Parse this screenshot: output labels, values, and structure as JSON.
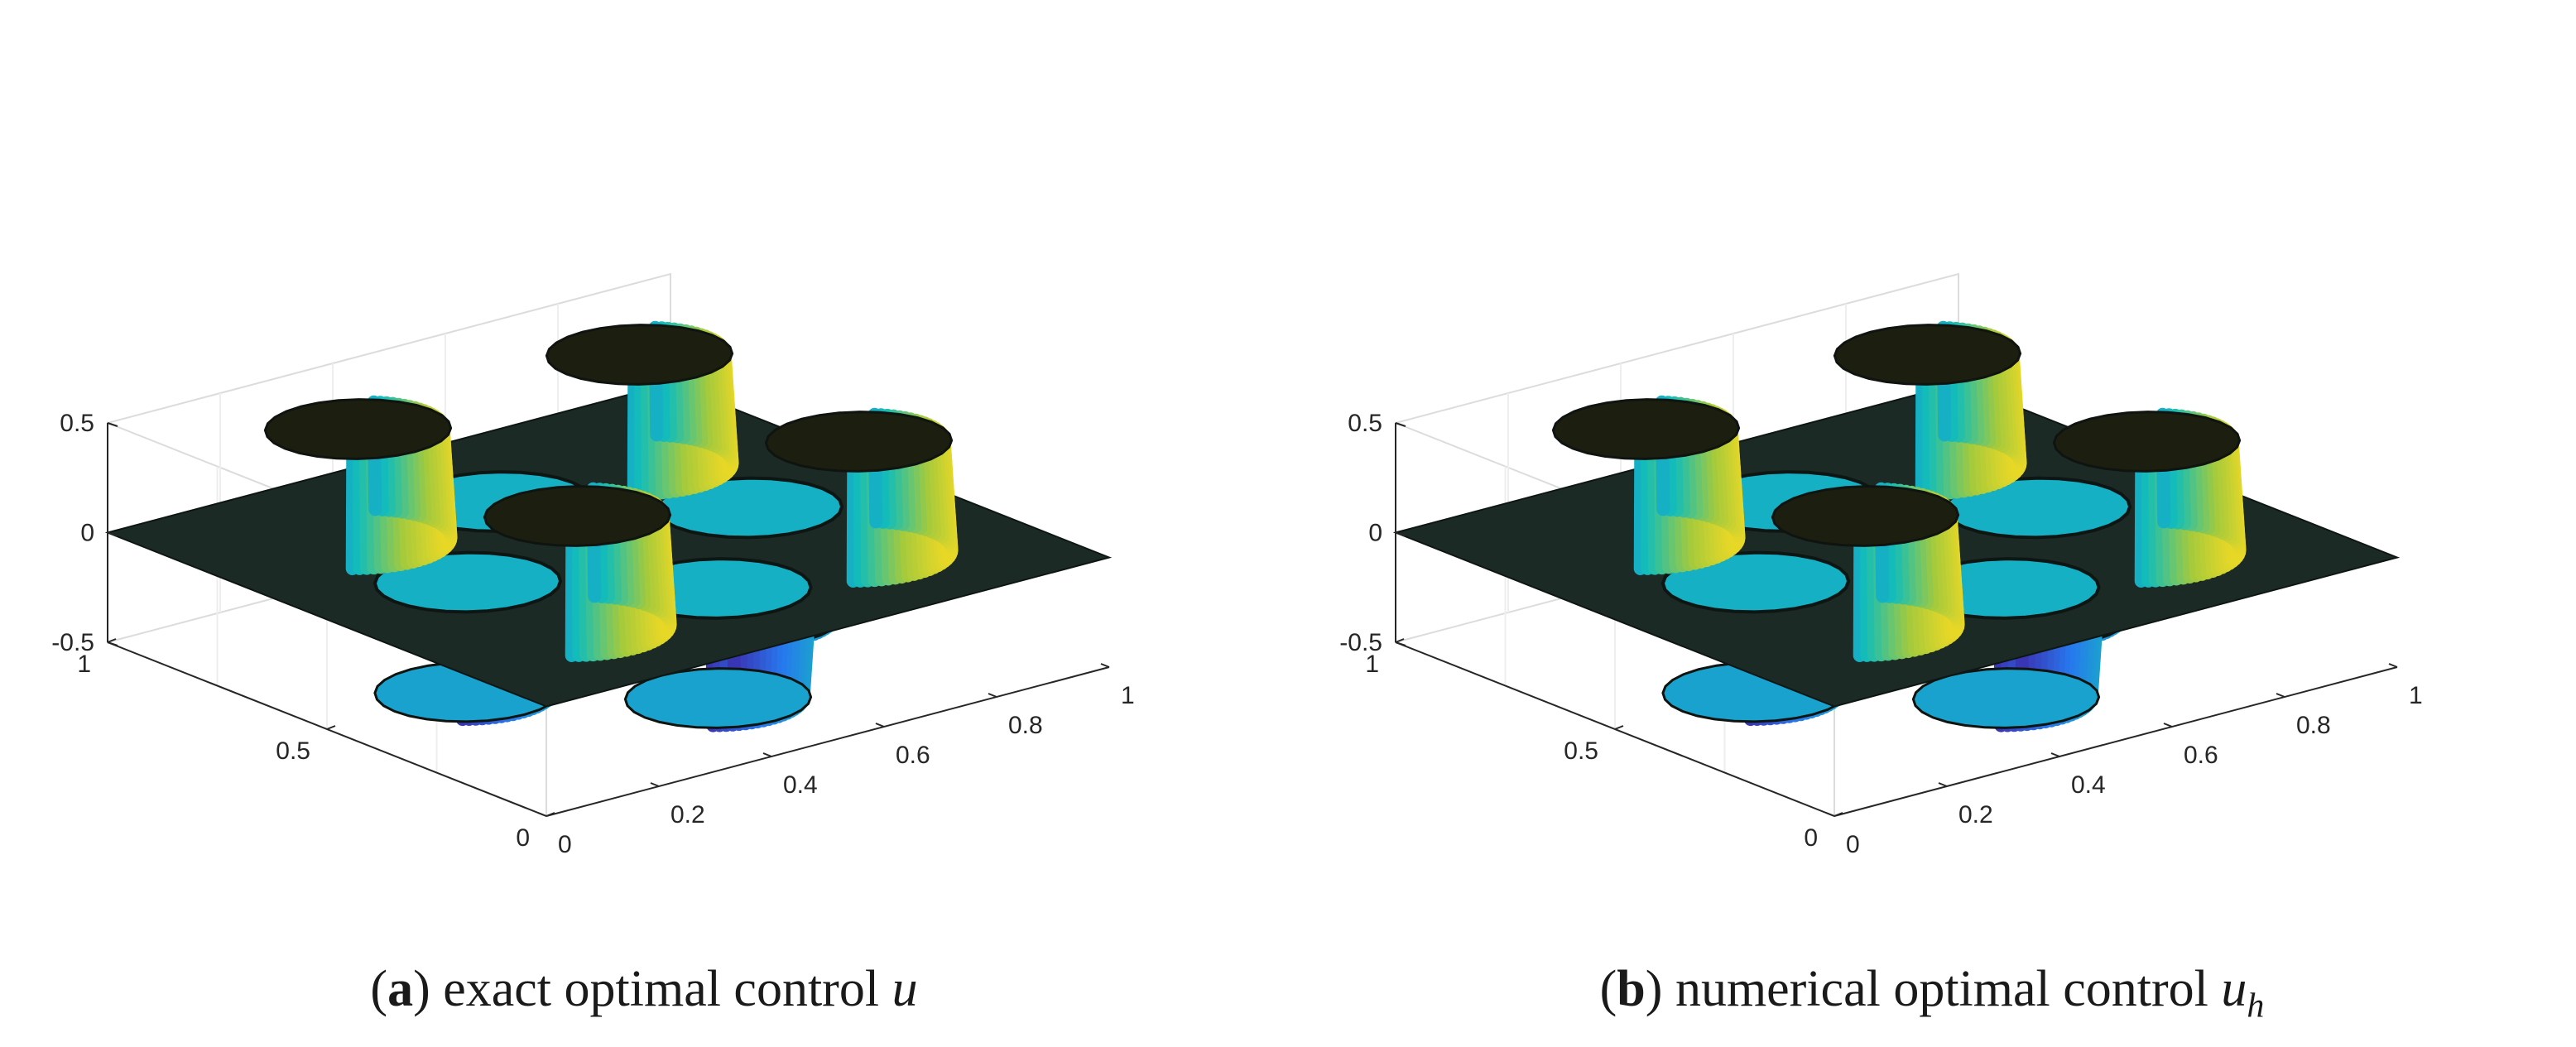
{
  "chart_data": [
    {
      "type": "surface",
      "panel_label": "a",
      "caption": "exact optimal control",
      "caption_var": "u",
      "caption_sub": "",
      "zlim": [
        -0.5,
        0.5
      ],
      "xlim": [
        0,
        1
      ],
      "ylim": [
        0,
        1
      ],
      "z_ticks": [
        "-0.5",
        "0",
        "0.5"
      ],
      "x_ticks": [
        "0",
        "0.2",
        "0.4",
        "0.6",
        "0.8",
        "1"
      ],
      "y_ticks": [
        "0",
        "0.5",
        "1"
      ],
      "grid": true,
      "colormap": "parula",
      "bumps": [
        {
          "x": 0.25,
          "y": 0.25,
          "height": 0.5
        },
        {
          "x": 0.75,
          "y": 0.75,
          "height": 0.5
        },
        {
          "x": 0.25,
          "y": 0.75,
          "height": 0.5
        },
        {
          "x": 0.75,
          "y": 0.25,
          "height": 0.5
        },
        {
          "x": 0.25,
          "y": 0.5,
          "height": -0.5
        },
        {
          "x": 0.5,
          "y": 0.75,
          "height": -0.5
        },
        {
          "x": 0.5,
          "y": 0.25,
          "height": -0.5
        },
        {
          "x": 0.75,
          "y": 0.5,
          "height": -0.5
        }
      ]
    },
    {
      "type": "surface",
      "panel_label": "b",
      "caption": "numerical optimal control",
      "caption_var": "u",
      "caption_sub": "h",
      "zlim": [
        -0.5,
        0.5
      ],
      "xlim": [
        0,
        1
      ],
      "ylim": [
        0,
        1
      ],
      "z_ticks": [
        "-0.5",
        "0",
        "0.5"
      ],
      "x_ticks": [
        "0",
        "0.2",
        "0.4",
        "0.6",
        "0.8",
        "1"
      ],
      "y_ticks": [
        "0",
        "0.5",
        "1"
      ],
      "grid": true,
      "colormap": "parula",
      "bumps": [
        {
          "x": 0.25,
          "y": 0.25,
          "height": 0.5
        },
        {
          "x": 0.75,
          "y": 0.75,
          "height": 0.5
        },
        {
          "x": 0.25,
          "y": 0.75,
          "height": 0.5
        },
        {
          "x": 0.75,
          "y": 0.25,
          "height": 0.5
        },
        {
          "x": 0.25,
          "y": 0.5,
          "height": -0.5
        },
        {
          "x": 0.5,
          "y": 0.75,
          "height": -0.5
        },
        {
          "x": 0.5,
          "y": 0.25,
          "height": -0.5
        },
        {
          "x": 0.75,
          "y": 0.5,
          "height": -0.5
        }
      ]
    }
  ]
}
